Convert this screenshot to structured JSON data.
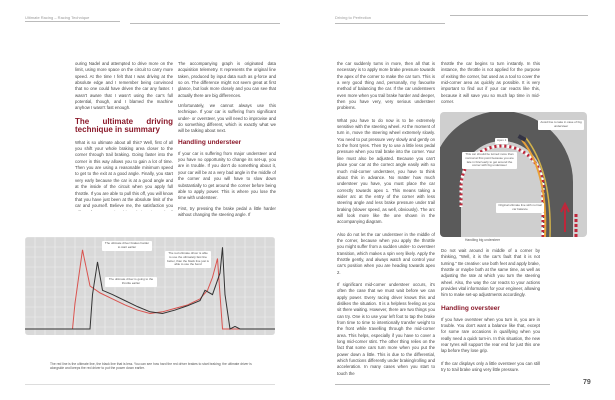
{
  "header": {
    "left": "Ultimate Racing – Racing Technique",
    "right": "Driving to Perfection"
  },
  "left_page": {
    "col1_intro": "ouring Nadel and attempted to drive more on the limit, using more space on the circuit to carry more speed. At the time I felt that I was driving at the absolute edge and I remember being convinced that no one could have driven the car any faster. I wasn't aware that I wasn't using the car's full potential, though, and I blamed the machine anyhow I wasn't fast enough.",
    "heading": "The ultimate driving technique in summary",
    "col1_body": "What is so ultimate about all this? Well, first of all you shift your whole braking area closer to the corner through trail braking. Going faster into the corner in this way allows you to gain a lot of time. Then you are using a reasonable minimum speed to get to the exit at a good angle. Finally, you start very early because the car is at a good angle and at the inside of the circuit when you apply full throttle. If you are able to pull this off, you will know that you have just been at the absolute limit of the car and yourself. Believe me, the satisfaction you will get from mastering this technique is worth all the hard work it takes to get there.",
    "col2_p1": "The accompanying graph is originated data acquisition telemetry. It represents the original line taken, produced by input data such as g-force and so on. The difference might not seem great at first glance, but look more closely and you can see that actually there are big differences.",
    "col2_p2": "Unfortunately, we cannot always use this technique. If your car is suffering from significant under- or oversteer, you will need to improvise and do something different, which is exactly what we will be talking about next.",
    "heading2": "Handling understeer",
    "col2_p3": "If your car is suffering from major understeer and you have no opportunity to change its set-up, you are in trouble. If you don't do something about it, your car will be at a very bad angle in the middle of the corner and you will have to slow down substantially to get around the corner before being able to apply power. This is where you lose the time with understeer.",
    "col2_p4": "First, try pressing the brake pedal a little harder without changing the steering angle. If",
    "figure": {
      "notes": [
        "The ultimate driver brakes harder to start earlier",
        "The ultimate driver is going to the throttle earlier",
        "The red ultimate driver is able to use the ultimately fast line better, than the black line just is able to use the bend"
      ],
      "caption": "The red line is the ultimate line, the black line that is less. You can see how hard the red driver brakes to start braking; the ultimate driver is alongside and keeps the red driver to put the power down earlier."
    }
  },
  "right_page": {
    "col1_p1": "the car suddenly turns in more, then all that is necessary is to apply more brake pressure towards the apex of the corner to make the car turn. This is a very good thing and, personally, my favourite method of balancing the car. If the car understeers even more when you trail brake harder and deeper, then you have very, very serious understeer problems.",
    "col1_p2": "What you have to do now is to be extremely sensitive with the steering wheel. At the moment of turn in, move the steering wheel extremely slowly. You need to put pressure very slowly and gently on to the front tyres. Then try to use a little less pedal pressure when you trail brake into the corner. Your line must also be adjusted. Because you can't place your car at the correct angle easily with so much mid-corner understeer, you have to think about this in advance. No matter how much understeer you have, you must place the car correctly towards apex 1. This means taking a wider arc at the entry of the corner with less steering angle and less brake pressure under trail braking (slower speed, as well, obviously). The arc will look more like the one shown in the accompanying diagram.",
    "col1_p3": "Also do not let the car understeer in the middle of the corner, because when you apply the throttle you might suffer from a sudden under- to oversteer transition, which makes a spin very likely. Apply the throttle gently, and always watch and control your car's position when you are heading towards apex 2.",
    "col1_p4": "If significant mid-corner understeer occurs, it's often the case that we must wait before we can apply power. Every racing driver knows this and dislikes the situation. It is a helpless feeling as you sit there waiting. However, there are two things you can try. One is to use your left foot to tap the brake from time to time to intentionally transfer weight to the front while travelling through the mid-corner area. This helps, especially if you have to cover a long mid-corner stint. The other thing relies on the fact that some cars turn more when you put the power down a little. This is due to the differential, which functions differently under braking/rolling and acceleration. In many cases when you start to touch the",
    "col2_p1": "throttle the car begins to turn instantly. In this instance, the throttle is not applied for the purpose of exiting the corner, but used as a tool to cover the mid-corner area as quickly as possible. It is very important to find out if your car reacts like this, because it will save you so much lap time in mid-corner.",
    "col2_p2": "Do not wait around in middle of a corner by thinking, \"Well, it is the car's fault that it is not turning.\" Be creative: use both feet and apply brake, throttle or maybe both at the same time, as well as adjusting the rate at which you turn the steering wheel. Also, the way the car reacts to your actions provides vital information for your engineer, allowing him to make set-up adjustments accordingly.",
    "heading": "Handling oversteer",
    "col2_p3": "If you have oversteer when you turn in, you are in trouble. You don't want a balance like that, except for some rare occasions in qualifying when you really need a quick turn-in. In this situation, the new rear tyres will support the rear end for just this one lap before they lose grip.",
    "col2_p4": "If the car displays only a little oversteer you can still try to trail brake using very little pressure.",
    "diagram": {
      "labels": {
        "apex": "Apex 1",
        "avoid": "Avoid line to take in case of big understeer",
        "turn": "This car should be turned more than normal at first point because you are late in brief early to get around the corner with big understeer",
        "original": "Original ultimate line with normal car balance"
      },
      "caption": "Handling big understeer"
    },
    "page_number": "79"
  },
  "chart_data": {
    "type": "line",
    "series": [
      {
        "color": "#d9534f",
        "x": [
          0,
          19,
          20,
          23,
          26,
          30,
          35,
          40,
          45,
          50,
          55,
          60,
          65,
          70,
          73,
          75,
          77,
          78,
          79,
          85,
          100
        ],
        "values": [
          0,
          0,
          30,
          92,
          50,
          42,
          35,
          28,
          22,
          18,
          20,
          24,
          28,
          35,
          45,
          60,
          82,
          40,
          0,
          0,
          0
        ]
      },
      {
        "color": "#333333",
        "x": [
          0,
          26,
          27,
          29,
          31,
          35,
          40,
          45,
          50,
          55,
          60,
          65,
          70,
          72,
          75,
          78,
          79,
          80,
          82,
          84,
          86,
          100
        ],
        "values": [
          0,
          0,
          40,
          78,
          45,
          40,
          33,
          26,
          20,
          18,
          22,
          27,
          33,
          45,
          40,
          65,
          95,
          40,
          0,
          3,
          0,
          0
        ]
      }
    ]
  }
}
